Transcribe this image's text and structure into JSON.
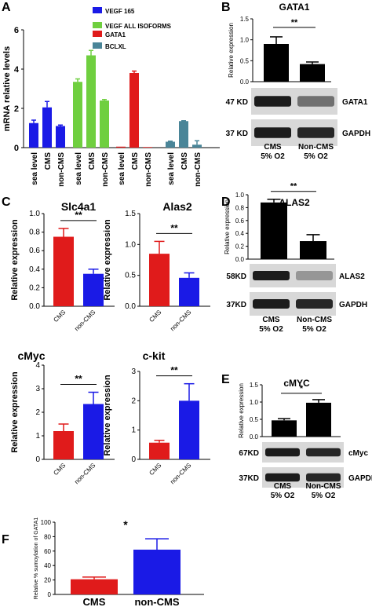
{
  "panel_labels": {
    "A": "A",
    "B": "B",
    "C": "C",
    "D": "D",
    "E": "E",
    "F": "F"
  },
  "chart_data": [
    {
      "id": "A",
      "type": "bar",
      "ylabel": "mRNA relative levels",
      "ylim": [
        0,
        6
      ],
      "yticks": [
        "0",
        "2",
        "4",
        "6"
      ],
      "legend": [
        {
          "name": "VEGF 165",
          "color": "#1a1ae6"
        },
        {
          "name": "VEGF ALL ISOFORMS",
          "color": "#6fcf3f"
        },
        {
          "name": "GATA1",
          "color": "#e01b1b"
        },
        {
          "name": "BCLXL",
          "color": "#4a8598"
        }
      ],
      "groups": [
        {
          "series": "VEGF 165",
          "color": "#1a1ae6",
          "categories": [
            "sea level",
            "CMS",
            "non-CMS"
          ],
          "values": [
            1.25,
            2.05,
            1.1
          ],
          "errors": [
            0.15,
            0.3,
            0.05
          ]
        },
        {
          "series": "VEGF ALL ISOFORMS",
          "color": "#6fcf3f",
          "categories": [
            "sea level",
            "CMS",
            "non-CMS"
          ],
          "values": [
            3.35,
            4.7,
            2.4
          ],
          "errors": [
            0.15,
            0.25,
            0.05
          ]
        },
        {
          "series": "GATA1",
          "color": "#e01b1b",
          "categories": [
            "sea level",
            "CMS",
            "non-CMS"
          ],
          "values": [
            0.05,
            3.8,
            0.03
          ],
          "errors": [
            0,
            0.1,
            0
          ]
        },
        {
          "series": "BCLXL",
          "color": "#4a8598",
          "categories": [
            "sea level",
            "CMS",
            "non-CMS"
          ],
          "values": [
            0.3,
            1.35,
            0.15
          ],
          "errors": [
            0.03,
            0.02,
            0.2
          ]
        }
      ]
    },
    {
      "id": "B",
      "type": "bar",
      "title": "GATA1",
      "ylabel": "Relative expression",
      "ylim": [
        0,
        1.5
      ],
      "yticks": [
        "0.0",
        "0.5",
        "1.0",
        "1.5"
      ],
      "categories": [
        "CMS",
        "Non-CMS"
      ],
      "values": [
        0.9,
        0.42
      ],
      "errors": [
        0.17,
        0.05
      ],
      "colors": [
        "#000000",
        "#000000"
      ],
      "significance": "**",
      "blot": {
        "rows": [
          {
            "size": "47 KD",
            "protein": "GATA1"
          },
          {
            "size": "37 KD",
            "protein": "GAPDH"
          }
        ],
        "labels": [
          "CMS\n5% O2",
          "Non-CMS\n5% O2"
        ]
      }
    },
    {
      "id": "C1",
      "type": "bar",
      "title": "Slc4a1",
      "ylabel": "Relative expression",
      "ylim": [
        0,
        1.0
      ],
      "yticks": [
        "0.0",
        "0.2",
        "0.4",
        "0.6",
        "0.8",
        "1.0"
      ],
      "categories": [
        "CMS",
        "non-CMS"
      ],
      "values": [
        0.75,
        0.35
      ],
      "errors": [
        0.09,
        0.05
      ],
      "colors": [
        "#e01b1b",
        "#1a1ae6"
      ],
      "significance": "**"
    },
    {
      "id": "C2",
      "type": "bar",
      "title": "Alas2",
      "ylabel": "Relative expression",
      "ylim": [
        0,
        1.5
      ],
      "yticks": [
        "0.0",
        "0.5",
        "1.0",
        "1.5"
      ],
      "categories": [
        "CMS",
        "non-CMS"
      ],
      "values": [
        0.85,
        0.46
      ],
      "errors": [
        0.2,
        0.08
      ],
      "colors": [
        "#e01b1b",
        "#1a1ae6"
      ],
      "significance": "**"
    },
    {
      "id": "C3",
      "type": "bar",
      "title": "cMyc",
      "ylabel": "Relative expression",
      "ylim": [
        0,
        4
      ],
      "yticks": [
        "0",
        "1",
        "2",
        "3",
        "4"
      ],
      "categories": [
        "CMS",
        "non-CMS"
      ],
      "values": [
        1.2,
        2.35
      ],
      "errors": [
        0.3,
        0.5
      ],
      "colors": [
        "#e01b1b",
        "#1a1ae6"
      ],
      "significance": "**"
    },
    {
      "id": "C4",
      "type": "bar",
      "title": "c-kit",
      "ylabel": "Relative expression",
      "ylim": [
        0,
        3
      ],
      "yticks": [
        "0",
        "1",
        "2",
        "3"
      ],
      "categories": [
        "CMS",
        "non-CMS"
      ],
      "values": [
        0.57,
        2.0
      ],
      "errors": [
        0.08,
        0.58
      ],
      "colors": [
        "#e01b1b",
        "#1a1ae6"
      ],
      "significance": "**"
    },
    {
      "id": "D",
      "type": "bar",
      "title": "ALAS2",
      "ylabel": "Relative expression",
      "ylim": [
        0,
        1.0
      ],
      "yticks": [
        "0.0",
        "0.2",
        "0.4",
        "0.6",
        "0.8",
        "1.0"
      ],
      "categories": [
        "CMS",
        "Non-CMS"
      ],
      "values": [
        0.88,
        0.28
      ],
      "errors": [
        0.05,
        0.1
      ],
      "colors": [
        "#000000",
        "#000000"
      ],
      "significance": "**",
      "blot": {
        "rows": [
          {
            "size": "58KD",
            "protein": "ALAS2"
          },
          {
            "size": "37KD",
            "protein": "GAPDH"
          }
        ],
        "labels": [
          "CMS\n5% O2",
          "Non-CMS\n5% O2"
        ]
      }
    },
    {
      "id": "E",
      "type": "bar",
      "title": "cMYC",
      "ylabel": "Relative expression",
      "ylim": [
        0,
        1.5
      ],
      "yticks": [
        "0.0",
        "0.5",
        "1.0",
        "1.5"
      ],
      "categories": [
        "CMS",
        "Non-CMS"
      ],
      "values": [
        0.47,
        0.98
      ],
      "errors": [
        0.05,
        0.09
      ],
      "colors": [
        "#000000",
        "#000000"
      ],
      "significance": "*",
      "blot": {
        "rows": [
          {
            "size": "67KD",
            "protein": "cMyc"
          },
          {
            "size": "37KD",
            "protein": "GAPDH"
          }
        ],
        "labels": [
          "CMS\n5% O2",
          "Non-CMS\n5% O2"
        ]
      }
    },
    {
      "id": "F",
      "type": "bar",
      "ylabel": "Relative % sumoylation of GATA1",
      "ylim": [
        0,
        100
      ],
      "yticks": [
        "0",
        "20",
        "40",
        "60",
        "80",
        "100"
      ],
      "categories": [
        "CMS",
        "non-CMS"
      ],
      "values": [
        21,
        62
      ],
      "errors": [
        3,
        15
      ],
      "colors": [
        "#e01b1b",
        "#1a1ae6"
      ],
      "significance": "*"
    }
  ]
}
